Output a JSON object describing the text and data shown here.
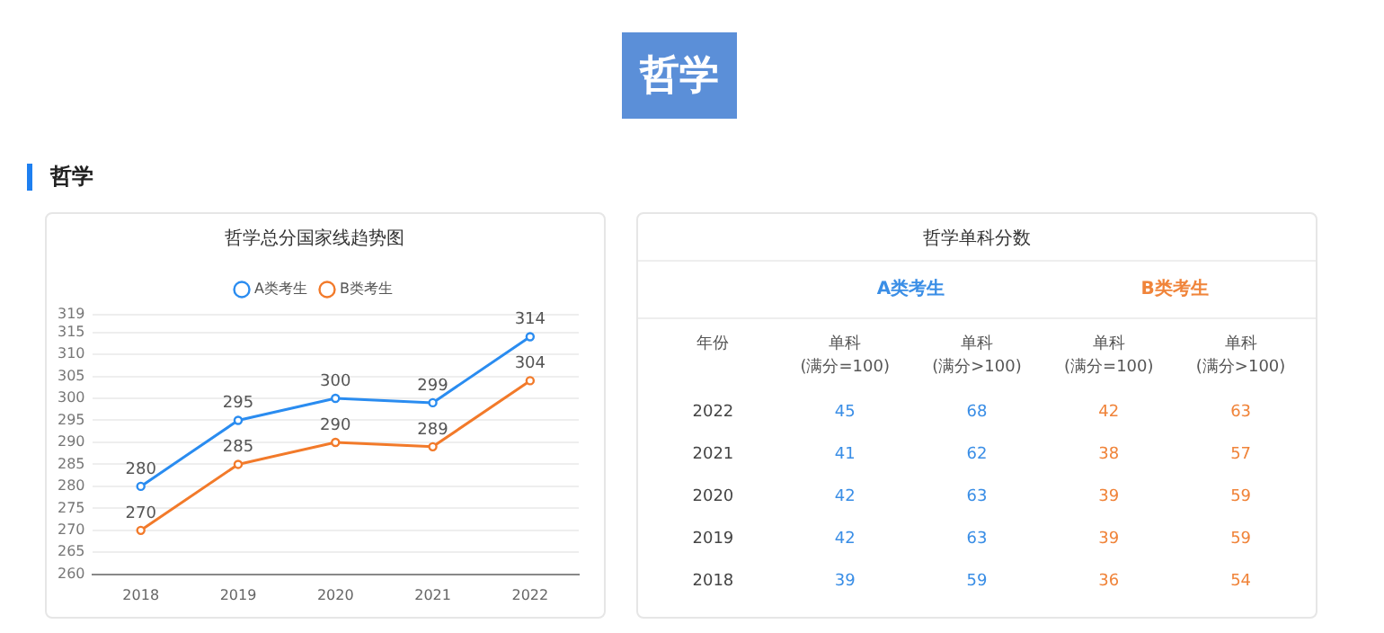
{
  "chart_data": [
    {
      "type": "line",
      "title": "哲学总分国家线趋势图",
      "annotations": [
        "哲学",
        "哲学"
      ],
      "categories": [
        "2018",
        "2019",
        "2020",
        "2021",
        "2022"
      ],
      "series": [
        {
          "name": "A类考生",
          "color": "#2a8cf0",
          "values": [
            280,
            295,
            300,
            299,
            314
          ]
        },
        {
          "name": "B类考生",
          "color": "#f27a2a",
          "values": [
            270,
            285,
            290,
            289,
            304
          ]
        }
      ],
      "ylim": [
        260,
        319
      ],
      "yticks": [
        260,
        265,
        270,
        275,
        280,
        285,
        290,
        295,
        300,
        305,
        310,
        315,
        319
      ],
      "grid": "y",
      "legend": "top",
      "marker": "circle",
      "line_style": "solid",
      "data_labels": true
    },
    {
      "type": "heatmap",
      "title": "哲学单科分数",
      "ylabel": "年份",
      "annotations": [
        "A类考生",
        "B类考生"
      ],
      "categories": [
        "单科\n(满分=100)",
        "单科\n(满分>100)",
        "单科\n(满分=100)",
        "单科\n(满分>100)"
      ],
      "y_categories": [
        "2022",
        "2021",
        "2020",
        "2019",
        "2018"
      ],
      "colors": [
        "#3a8ee6",
        "#3a8ee6",
        "#f0843a",
        "#f0843a"
      ],
      "cells": [
        [
          45,
          68,
          42,
          63
        ],
        [
          41,
          62,
          38,
          57
        ],
        [
          42,
          63,
          39,
          59
        ],
        [
          42,
          63,
          39,
          59
        ],
        [
          39,
          59,
          36,
          54
        ]
      ],
      "data_labels": true
    }
  ]
}
